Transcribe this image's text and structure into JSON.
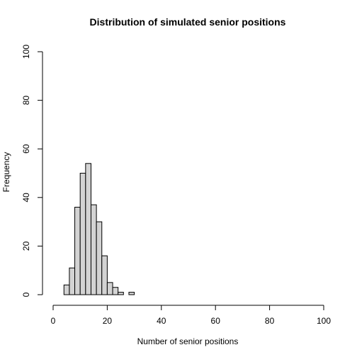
{
  "chart_data": {
    "type": "bar",
    "title": "Distribution of simulated senior positions",
    "xlabel": "Number of senior positions",
    "ylabel": "Frequency",
    "xlim": [
      0,
      100
    ],
    "ylim": [
      0,
      100
    ],
    "x_ticks": [
      "0",
      "20",
      "40",
      "60",
      "80",
      "100"
    ],
    "y_ticks": [
      "0",
      "20",
      "40",
      "60",
      "80",
      "100"
    ],
    "bin_width": 2,
    "bins": [
      {
        "start": 4,
        "end": 6,
        "count": 4
      },
      {
        "start": 6,
        "end": 8,
        "count": 11
      },
      {
        "start": 8,
        "end": 10,
        "count": 36
      },
      {
        "start": 10,
        "end": 12,
        "count": 50
      },
      {
        "start": 12,
        "end": 14,
        "count": 54
      },
      {
        "start": 14,
        "end": 16,
        "count": 37
      },
      {
        "start": 16,
        "end": 18,
        "count": 30
      },
      {
        "start": 18,
        "end": 20,
        "count": 16
      },
      {
        "start": 20,
        "end": 22,
        "count": 5
      },
      {
        "start": 22,
        "end": 24,
        "count": 3
      },
      {
        "start": 24,
        "end": 26,
        "count": 1
      },
      {
        "start": 26,
        "end": 28,
        "count": 0
      },
      {
        "start": 28,
        "end": 30,
        "count": 1
      }
    ],
    "grid": false,
    "legend": "none",
    "colors": {
      "bar_fill": "#d3d3d3",
      "bar_stroke": "#000000"
    }
  }
}
